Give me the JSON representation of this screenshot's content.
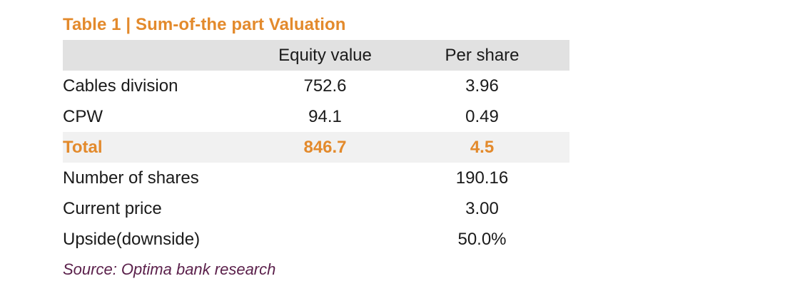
{
  "title": "Table 1 | Sum-of-the part Valuation",
  "table": {
    "headers": [
      "",
      "Equity value",
      "Per share"
    ],
    "rows": [
      {
        "label": "Cables division",
        "equity_value": "752.6",
        "per_share": "3.96"
      },
      {
        "label": "CPW",
        "equity_value": "94.1",
        "per_share": "0.49"
      },
      {
        "label": "Total",
        "equity_value": "846.7",
        "per_share": "4.5"
      },
      {
        "label": "Number of shares",
        "equity_value": "",
        "per_share": "190.16"
      },
      {
        "label": "Current price",
        "equity_value": "",
        "per_share": "3.00"
      },
      {
        "label": "Upside(downside)",
        "equity_value": "",
        "per_share": "50.0%"
      }
    ]
  },
  "source": "Source: Optima bank research",
  "colors": {
    "accent": "#e38a2c",
    "header_bg": "#e1e1e1",
    "total_bg": "#f1f1f1",
    "source_text": "#5a1f4a"
  }
}
